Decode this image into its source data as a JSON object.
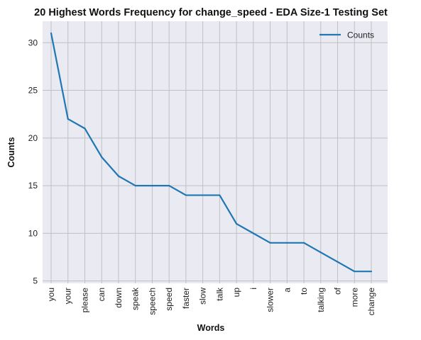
{
  "chart_data": {
    "type": "line",
    "title": "20 Highest Words Frequency for change_speed - EDA Size-1 Testing Set",
    "xlabel": "Words",
    "ylabel": "Counts",
    "categories": [
      "you",
      "your",
      "please",
      "can",
      "down",
      "speak",
      "speech",
      "speed",
      "faster",
      "slow",
      "talk",
      "up",
      "i",
      "slower",
      "a",
      "to",
      "talking",
      "of",
      "more",
      "change"
    ],
    "series": [
      {
        "name": "Counts",
        "values": [
          31,
          22,
          21,
          18,
          16,
          15,
          15,
          15,
          14,
          14,
          14,
          11,
          10,
          9,
          9,
          9,
          8,
          7,
          6,
          6
        ]
      }
    ],
    "ylim": [
      4.75,
      32.25
    ],
    "yticks": [
      5,
      10,
      15,
      20,
      25,
      30
    ],
    "grid": true,
    "legend": "top-right",
    "colors": {
      "line": "#1f77b4",
      "background": "#eaeaf2",
      "grid": "#c0c0c0"
    }
  }
}
